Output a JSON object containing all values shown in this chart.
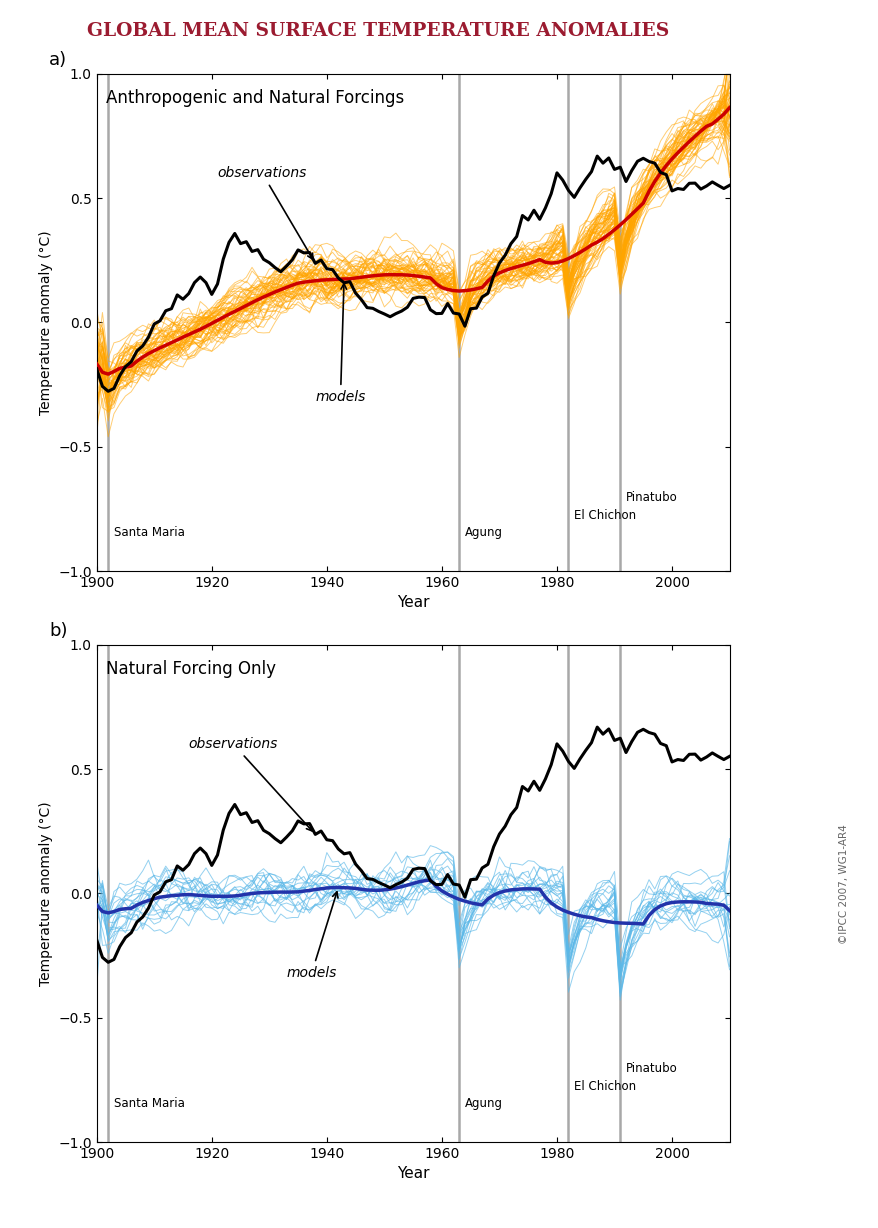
{
  "title": "Global Mean Surface Temperature Anomalies",
  "title_color": "#9B1B30",
  "panel_a_label": "a)",
  "panel_b_label": "b)",
  "panel_a_title": "Anthropogenic and Natural Forcings",
  "panel_b_title": "Natural Forcing Only",
  "ylabel": "Temperature anomaly (°C)",
  "xlabel": "Year",
  "ylim": [
    -1.0,
    1.0
  ],
  "xlim": [
    1900,
    2010
  ],
  "volcano_lines": [
    1902,
    1963,
    1982,
    1991
  ],
  "obs_label": "observations",
  "models_label": "models",
  "orange_color": "#FFA500",
  "red_color": "#CC0000",
  "blue_light_color": "#5BB8E8",
  "blue_dark_color": "#2233AA",
  "black_color": "#000000",
  "gray_color": "#999999",
  "n_model_runs_a": 58,
  "n_model_runs_b": 19,
  "seed": 42
}
